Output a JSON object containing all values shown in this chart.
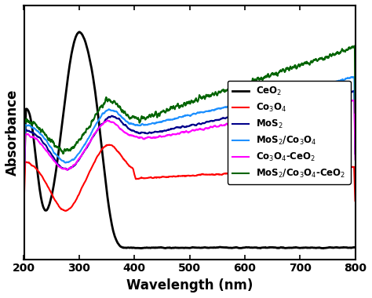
{
  "title": "",
  "xlabel": "Wavelength (nm)",
  "ylabel": "Absorbance",
  "xlim": [
    200,
    800
  ],
  "ylim": [
    -0.05,
    1.05
  ],
  "series": [
    {
      "label": "CeO$_2$",
      "color": "#000000",
      "lw": 2.0,
      "style": "ceo2"
    },
    {
      "label": "Co$_3$O$_4$",
      "color": "#ff0000",
      "lw": 1.5,
      "style": "co3o4"
    },
    {
      "label": "MoS$_2$",
      "color": "#00008B",
      "lw": 1.5,
      "style": "mos2"
    },
    {
      "label": "MoS$_2$/Co$_3$O$_4$",
      "color": "#1e90ff",
      "lw": 1.5,
      "style": "mos2co3o4"
    },
    {
      "label": "Co$_3$O$_4$-CeO$_2$",
      "color": "#ff00ff",
      "lw": 1.5,
      "style": "co3o4ceo2"
    },
    {
      "label": "MoS$_2$/Co$_3$O$_4$-CeO$_2$",
      "color": "#006400",
      "lw": 1.5,
      "style": "mos2co3o4ceo2"
    }
  ],
  "legend_loc": "center right",
  "legend_fontsize": 8.5,
  "tick_fontsize": 10,
  "label_fontsize": 12,
  "noise_seed": 42
}
